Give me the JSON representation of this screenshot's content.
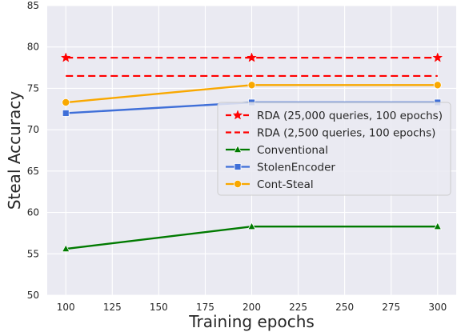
{
  "chart_data": {
    "type": "line",
    "title": "",
    "xlabel": "Training epochs",
    "ylabel": "Steal Accuracy",
    "xlim": [
      90,
      310
    ],
    "ylim": [
      50,
      85
    ],
    "xticks": [
      100,
      125,
      150,
      175,
      200,
      225,
      250,
      275,
      300
    ],
    "yticks": [
      50,
      55,
      60,
      65,
      70,
      75,
      80,
      85
    ],
    "grid": true,
    "background": "#eaeaf2",
    "legend_position": "center-right",
    "hlines": [
      {
        "name": "RDA (25,000 queries, 100 epochs)",
        "y": 78.7,
        "color": "#ff0000",
        "style": "dashed",
        "marker": "star",
        "marker_x": [
          100,
          200,
          300
        ]
      },
      {
        "name": "RDA (2,500 queries, 100 epochs)",
        "y": 76.5,
        "color": "#ff0000",
        "style": "dashed",
        "marker": "none"
      }
    ],
    "x": [
      100,
      200,
      300
    ],
    "series": [
      {
        "name": "Conventional",
        "values": [
          55.6,
          58.3,
          58.3
        ],
        "color": "#007a00",
        "marker": "triangle"
      },
      {
        "name": "StolenEncoder",
        "values": [
          72.0,
          73.3,
          73.3
        ],
        "color": "#3f6fd8",
        "marker": "square"
      },
      {
        "name": "Cont-Steal",
        "values": [
          73.3,
          75.4,
          75.4
        ],
        "color": "#f9a800",
        "marker": "circle"
      }
    ]
  }
}
